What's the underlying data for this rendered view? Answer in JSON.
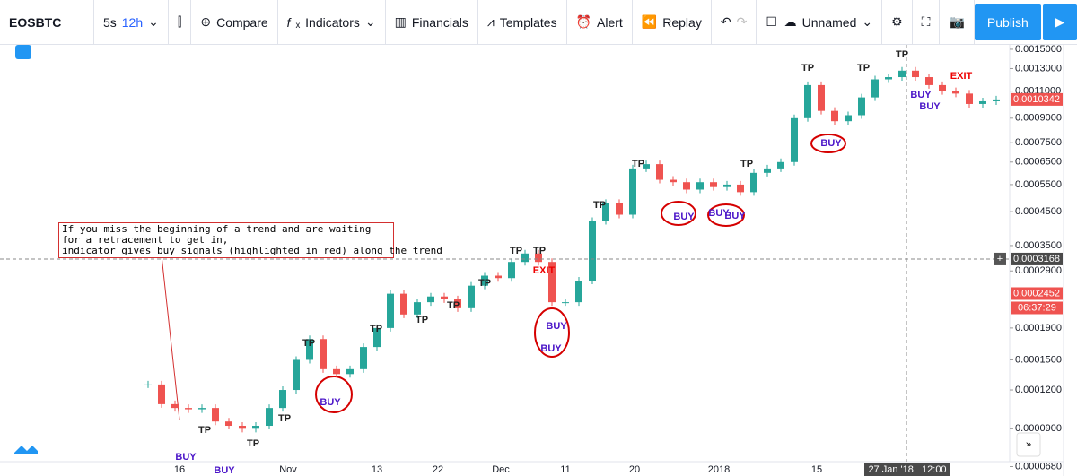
{
  "toolbar": {
    "symbol": "EOSBTC",
    "intervals": [
      "5s",
      "12h"
    ],
    "buttons": [
      "Compare",
      "Indicators",
      "Financials",
      "Templates",
      "Alert",
      "Replay"
    ],
    "layout": "Unnamed",
    "publish": "Publish"
  },
  "annotation": [
    "If you miss the beginning of a trend and are waiting",
    "for a retracement to get in,",
    "indicator gives buy signals (highlighted in red) along the trend"
  ],
  "signals": [
    "TP",
    "TP",
    "TP",
    "TP",
    "TP",
    "TP",
    "TP",
    "TP",
    "TP",
    "TP",
    "TP",
    "TP",
    "TP",
    "TP",
    "TP",
    "TP",
    "BUY",
    "BUY",
    "BUY",
    "BUY",
    "BUY",
    "BUY",
    "BUY",
    "BUY",
    "BUY",
    "BUY",
    "BUY",
    "EXIT",
    "EXIT"
  ],
  "chart": {
    "type": "candlestick",
    "log_scale": true,
    "closes": [
      0.000125,
      0.000108,
      0.000105,
      0.000104,
      0.000105,
      9.5e-05,
      9.2e-05,
      9e-05,
      9.2e-05,
      0.000105,
      0.00012,
      0.00015,
      0.000175,
      0.00014,
      0.000135,
      0.00014,
      0.000165,
      0.00019,
      0.000245,
      0.00021,
      0.00023,
      0.00024,
      0.000235,
      0.00022,
      0.00026,
      0.00028,
      0.000275,
      0.00031,
      0.00033,
      0.00031,
      0.00023,
      0.00023,
      0.00027,
      0.00042,
      0.00048,
      0.00044,
      0.00062,
      0.00064,
      0.00057,
      0.00056,
      0.00053,
      0.00056,
      0.00054,
      0.00055,
      0.00052,
      0.0006,
      0.00062,
      0.00065,
      0.0009,
      0.00115,
      0.00095,
      0.00088,
      0.00092,
      0.00105,
      0.0012,
      0.00122,
      0.00128,
      0.00122,
      0.00115,
      0.0011,
      0.00108,
      0.001,
      0.00102,
      0.0010342
    ],
    "up_color": "#26a69a",
    "down_color": "#ef5350",
    "ylim": [
      6.6e-05,
      0.00155
    ],
    "yticks": [
      {
        "value": 0.0015,
        "label": "0.0015000"
      },
      {
        "value": 0.0013,
        "label": "0.0013000"
      },
      {
        "value": 0.0011,
        "label": "0.0011000"
      },
      {
        "value": 0.0009,
        "label": "0.0009000"
      },
      {
        "value": 0.00075,
        "label": "0.0007500"
      },
      {
        "value": 0.00065,
        "label": "0.0006500"
      },
      {
        "value": 0.00055,
        "label": "0.0005500"
      },
      {
        "value": 0.00045,
        "label": "0.0004500"
      },
      {
        "value": 0.00035,
        "label": "0.0003500"
      },
      {
        "value": 0.00029,
        "label": "0.0002900"
      },
      {
        "value": 0.00019,
        "label": "0.0001900"
      },
      {
        "value": 0.00015,
        "label": "0.0001500"
      },
      {
        "value": 0.00012,
        "label": "0.0001200"
      },
      {
        "value": 9e-05,
        "label": "0.0000900"
      },
      {
        "value": 6.8e-05,
        "label": "0.0000680"
      }
    ],
    "last_price": {
      "value": 0.0010342,
      "label": "0.0010342"
    },
    "crosshair_price": {
      "value": 0.0003168,
      "label": "0.0003168"
    },
    "other_price": {
      "value": 0.0002452,
      "label": "0.0002452"
    },
    "countdown": "06:37:29",
    "dates": [
      "16",
      "Nov",
      "13",
      "22",
      "Dec",
      "11",
      "20",
      "2018",
      "15"
    ],
    "crosshair_date": "27 Jan '18   12:00"
  }
}
